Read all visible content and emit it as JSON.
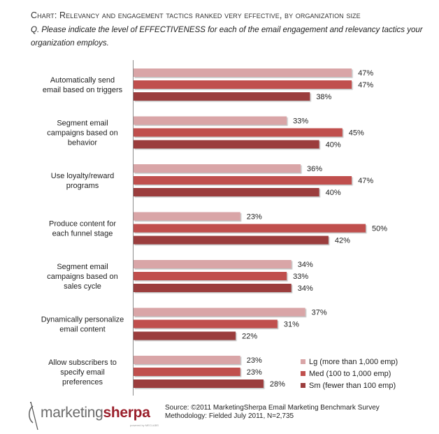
{
  "header": {
    "title": "Chart: Relevancy and engagement tactics ranked very effective, by organization size",
    "question": "Q. Please indicate the level of EFFECTIVENESS for each of the email engagement and relevancy tactics your organization employs."
  },
  "chart_data": {
    "type": "bar",
    "orientation": "horizontal",
    "title": "Chart: Relevancy and engagement tactics ranked very effective, by organization size",
    "subtitle": "Q. Please indicate the level of EFFECTIVENESS for each of the email engagement and relevancy tactics your organization employs.",
    "xlabel": "",
    "ylabel": "",
    "xlim": [
      0,
      50
    ],
    "grid": false,
    "legend_position": "bottom-right",
    "value_suffix": "%",
    "categories": [
      [
        "Automatically send",
        "email based on triggers"
      ],
      [
        "Segment email",
        "campaigns based on",
        "behavior"
      ],
      [
        "Use loyalty/reward",
        "programs"
      ],
      [
        "Produce content for",
        "each funnel stage"
      ],
      [
        "Segment email",
        "campaigns based on",
        "sales cycle"
      ],
      [
        "Dynamically personalize",
        "email content"
      ],
      [
        "Allow subscribers to",
        "specify email",
        "preferences"
      ]
    ],
    "series": [
      {
        "name": "Lg (more than 1,000 emp)",
        "color": "#d9a5a7",
        "values": [
          47,
          33,
          36,
          23,
          34,
          37,
          23
        ]
      },
      {
        "name": "Med (100 to 1,000 emp)",
        "color": "#c0504d",
        "values": [
          47,
          45,
          47,
          50,
          33,
          31,
          23
        ]
      },
      {
        "name": "Sm (fewer than 100 emp)",
        "color": "#9b3d3d",
        "values": [
          38,
          40,
          40,
          42,
          34,
          22,
          28
        ]
      }
    ]
  },
  "footer": {
    "logo_part1": "marketing",
    "logo_part2": "sherpa",
    "logo_tagline": "powered by MECLABS",
    "source_line1": "Source: ©2011 MarketingSherpa Email Marketing Benchmark Survey",
    "source_line2": "Methodology: Fielded July 2011, N=2,735"
  }
}
